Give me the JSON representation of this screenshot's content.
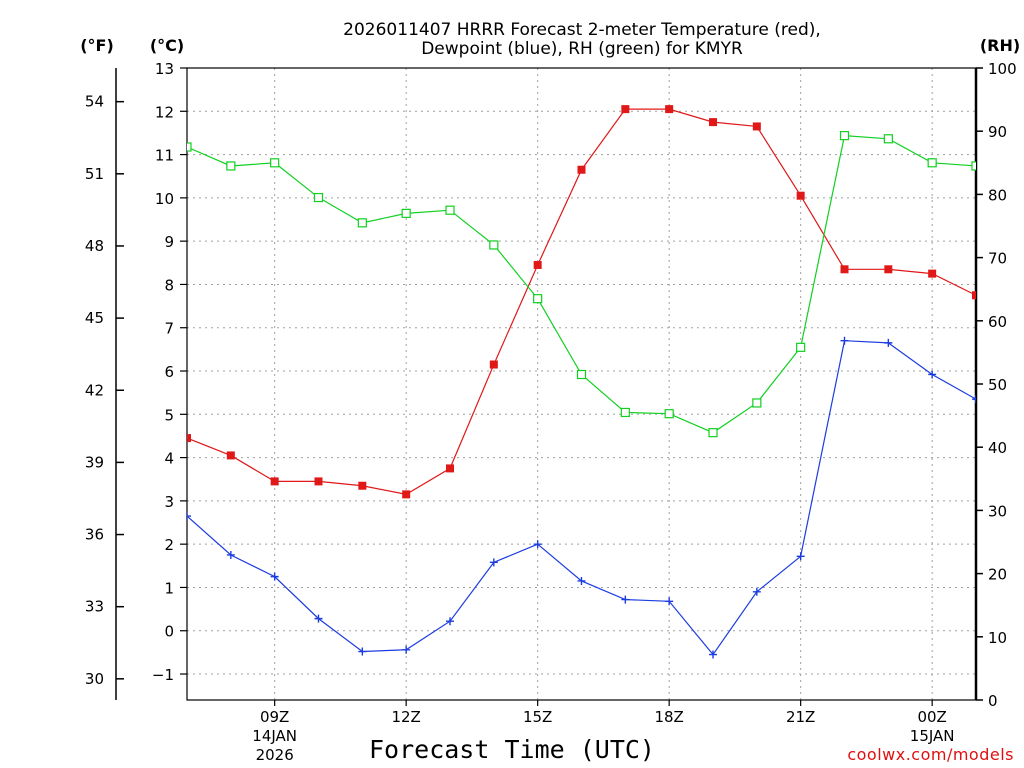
{
  "chart_data": {
    "type": "line",
    "title_line1": "2026011407 HRRR Forecast 2-meter Temperature (red),",
    "title_line2": "Dewpoint (blue), RH (green) for KMYR",
    "xlabel": "Forecast Time (UTC)",
    "credit": "coolwx.com/models",
    "left_outer_unit": "(°F)",
    "left_inner_unit": "(°C)",
    "right_unit": "(RH)",
    "x_range_hours": [
      7,
      25
    ],
    "x_ticks": [
      {
        "hour": 9,
        "label": "09Z",
        "line2": "14JAN",
        "line3": "2026"
      },
      {
        "hour": 12,
        "label": "12Z",
        "line2": "",
        "line3": ""
      },
      {
        "hour": 15,
        "label": "15Z",
        "line2": "",
        "line3": ""
      },
      {
        "hour": 18,
        "label": "18Z",
        "line2": "",
        "line3": ""
      },
      {
        "hour": 21,
        "label": "21Z",
        "line2": "",
        "line3": ""
      },
      {
        "hour": 24,
        "label": "00Z",
        "line2": "15JAN",
        "line3": ""
      }
    ],
    "ylim_c": [
      -1.6,
      13
    ],
    "yticks_c": [
      -1,
      0,
      1,
      2,
      3,
      4,
      5,
      6,
      7,
      8,
      9,
      10,
      11,
      12,
      13
    ],
    "yticks_f": [
      30,
      33,
      36,
      39,
      42,
      45,
      48,
      51,
      54
    ],
    "ylim_rh": [
      0,
      100
    ],
    "yticks_rh": [
      0,
      10,
      20,
      30,
      40,
      50,
      60,
      70,
      80,
      90,
      100
    ],
    "x_hours": [
      7,
      8,
      9,
      10,
      11,
      12,
      13,
      14,
      15,
      16,
      17,
      18,
      19,
      20,
      21,
      22,
      23,
      24,
      25
    ],
    "series": [
      {
        "name": "Temperature",
        "units": "C",
        "color": "#e01818",
        "values": [
          4.45,
          4.05,
          3.45,
          3.45,
          3.35,
          3.15,
          3.75,
          6.15,
          8.45,
          10.65,
          12.05,
          12.05,
          11.75,
          11.65,
          10.05,
          8.35,
          8.35,
          8.25,
          7.75
        ]
      },
      {
        "name": "Dewpoint",
        "units": "C",
        "color": "#1c3ce0",
        "values": [
          2.65,
          1.75,
          1.25,
          0.28,
          -0.48,
          -0.44,
          0.22,
          1.58,
          2.0,
          1.15,
          0.72,
          0.68,
          -0.55,
          0.9,
          1.72,
          6.7,
          6.65,
          5.92,
          5.35
        ]
      },
      {
        "name": "RH",
        "units": "%",
        "color": "#10d020",
        "values": [
          87.5,
          84.5,
          85.0,
          79.5,
          75.5,
          77.0,
          77.5,
          72.0,
          63.5,
          51.5,
          45.5,
          45.3,
          42.3,
          47.0,
          55.8,
          89.3,
          88.8,
          85.0,
          84.5
        ]
      }
    ]
  }
}
